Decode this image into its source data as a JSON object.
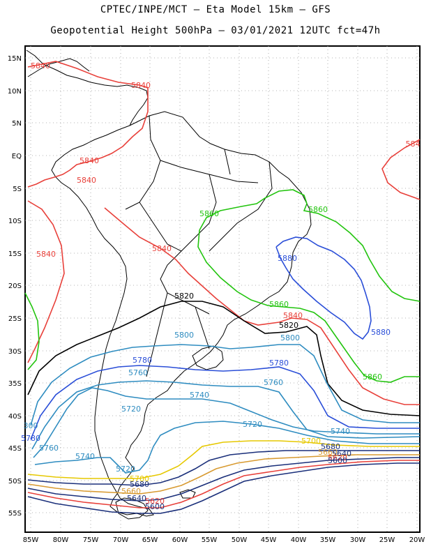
{
  "header": {
    "line1": "CPTEC/INPE/MCT –  Eta Model 15km – GFS",
    "line2": "Geopotential Height 500hPa – 03/01/2021 12UTC fct=47h"
  },
  "map": {
    "lon_ticks": [
      "85W",
      "80W",
      "75W",
      "70W",
      "65W",
      "60W",
      "55W",
      "50W",
      "45W",
      "40W",
      "35W",
      "30W",
      "25W",
      "20W"
    ],
    "lat_ticks": [
      "15N",
      "10N",
      "5N",
      "EQ",
      "5S",
      "10S",
      "15S",
      "20S",
      "25S",
      "30S",
      "35S",
      "40S",
      "45S",
      "50S",
      "55S"
    ],
    "gridlines": "dotted",
    "coastline_color": "#000000",
    "contour_labels": [
      {
        "text": "5840",
        "color": "#e8403a"
      },
      {
        "text": "5840",
        "color": "#e8403a"
      },
      {
        "text": "5840",
        "color": "#e8403a"
      },
      {
        "text": "5840",
        "color": "#e8403a"
      },
      {
        "text": "5840",
        "color": "#e8403a"
      },
      {
        "text": "5840",
        "color": "#e8403a"
      },
      {
        "text": "5840",
        "color": "#e8403a"
      },
      {
        "text": "584",
        "color": "#e8403a"
      },
      {
        "text": "5860",
        "color": "#22c40e"
      },
      {
        "text": "5860",
        "color": "#22c40e"
      },
      {
        "text": "5860",
        "color": "#22c40e"
      },
      {
        "text": "5860",
        "color": "#22c40e"
      },
      {
        "text": "5880",
        "color": "#2a4ed8"
      },
      {
        "text": "5880",
        "color": "#2a4ed8"
      },
      {
        "text": "5820",
        "color": "#000000"
      },
      {
        "text": "5820",
        "color": "#000000"
      },
      {
        "text": "5800",
        "color": "#2e8cc0"
      },
      {
        "text": "5800",
        "color": "#2e8cc0"
      },
      {
        "text": "5780",
        "color": "#2a4ed8"
      },
      {
        "text": "5780",
        "color": "#2a4ed8"
      },
      {
        "text": "5780",
        "color": "#2a4ed8"
      },
      {
        "text": "5760",
        "color": "#2e8cc0"
      },
      {
        "text": "5760",
        "color": "#2e8cc0"
      },
      {
        "text": "5760",
        "color": "#2e8cc0"
      },
      {
        "text": "5740",
        "color": "#2e8cc0"
      },
      {
        "text": "5740",
        "color": "#2e8cc0"
      },
      {
        "text": "5740",
        "color": "#2e8cc0"
      },
      {
        "text": "5720",
        "color": "#2e8cc0"
      },
      {
        "text": "5720",
        "color": "#2e8cc0"
      },
      {
        "text": "5720",
        "color": "#2e8cc0"
      },
      {
        "text": "5700",
        "color": "#e6c800"
      },
      {
        "text": "5700",
        "color": "#e6c800"
      },
      {
        "text": "5680",
        "color": "#1a2f7a"
      },
      {
        "text": "5680",
        "color": "#1a2f7a"
      },
      {
        "text": "5660",
        "color": "#d89a30"
      },
      {
        "text": "5660",
        "color": "#d89a30"
      },
      {
        "text": "5640",
        "color": "#1a2f7a"
      },
      {
        "text": "5640",
        "color": "#1a2f7a"
      },
      {
        "text": "5620",
        "color": "#e8403a"
      },
      {
        "text": "5620",
        "color": "#e8403a"
      },
      {
        "text": "5600",
        "color": "#1a2f7a"
      },
      {
        "text": "5600",
        "color": "#1a2f7a"
      },
      {
        "text": "300",
        "color": "#2e8cc0"
      }
    ]
  }
}
